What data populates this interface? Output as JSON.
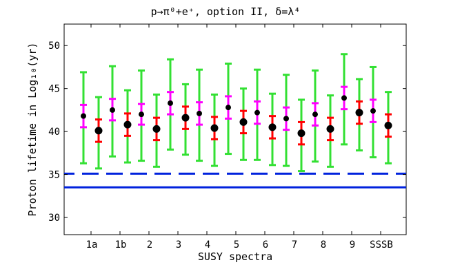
{
  "chart_data": {
    "type": "errorbar",
    "title": "p→π⁰+e⁺, option II, δ=λ⁴",
    "xlabel": "SUSY spectra",
    "ylabel": "Proton lifetime in Log₁₀(yr)",
    "ylim": [
      28,
      52.5
    ],
    "yticks": [
      30,
      35,
      40,
      45,
      50
    ],
    "categories": [
      "1a",
      "1b",
      "2",
      "3",
      "4",
      "5",
      "6",
      "7",
      "8",
      "9",
      "SSSB"
    ],
    "series": [
      {
        "marker": "small",
        "inner_color": "#ff00ff",
        "outer_color": "#33e033",
        "values": [
          41.8,
          42.5,
          42.0,
          43.3,
          42.1,
          42.8,
          42.2,
          41.5,
          42.0,
          43.9,
          42.4
        ],
        "inner_low": [
          40.5,
          41.3,
          40.8,
          42.0,
          40.8,
          41.5,
          40.9,
          40.2,
          40.7,
          42.6,
          41.1
        ],
        "inner_high": [
          43.1,
          43.8,
          43.2,
          44.6,
          43.4,
          44.1,
          43.5,
          42.8,
          43.3,
          45.2,
          43.7
        ],
        "outer_low": [
          36.3,
          37.1,
          36.6,
          37.9,
          36.6,
          37.4,
          36.7,
          36.0,
          36.5,
          38.5,
          37.0
        ],
        "outer_high": [
          46.9,
          47.6,
          47.1,
          48.4,
          47.2,
          47.9,
          47.2,
          46.6,
          47.1,
          49.0,
          47.5
        ]
      },
      {
        "marker": "large",
        "inner_color": "#ff0000",
        "outer_color": "#33e033",
        "values": [
          40.1,
          40.8,
          40.3,
          41.6,
          40.4,
          41.1,
          40.5,
          39.8,
          40.3,
          42.2,
          40.7
        ],
        "inner_low": [
          38.8,
          39.5,
          39.0,
          40.3,
          39.1,
          39.8,
          39.2,
          38.5,
          39.0,
          40.9,
          39.4
        ],
        "inner_high": [
          41.4,
          42.1,
          41.6,
          42.9,
          41.7,
          42.4,
          41.8,
          41.1,
          41.6,
          43.5,
          42.0
        ],
        "outer_low": [
          35.7,
          36.4,
          35.9,
          37.3,
          36.0,
          36.7,
          36.1,
          35.4,
          35.9,
          37.8,
          36.3
        ],
        "outer_high": [
          44.0,
          44.8,
          44.3,
          45.5,
          44.3,
          45.0,
          44.4,
          43.7,
          44.2,
          46.1,
          44.6
        ]
      }
    ],
    "reference_lines": [
      {
        "value": 35.1,
        "style": "dashed",
        "color": "#0022dd"
      },
      {
        "value": 33.5,
        "style": "solid",
        "color": "#0022dd"
      }
    ],
    "grid": false,
    "legend": "none"
  }
}
